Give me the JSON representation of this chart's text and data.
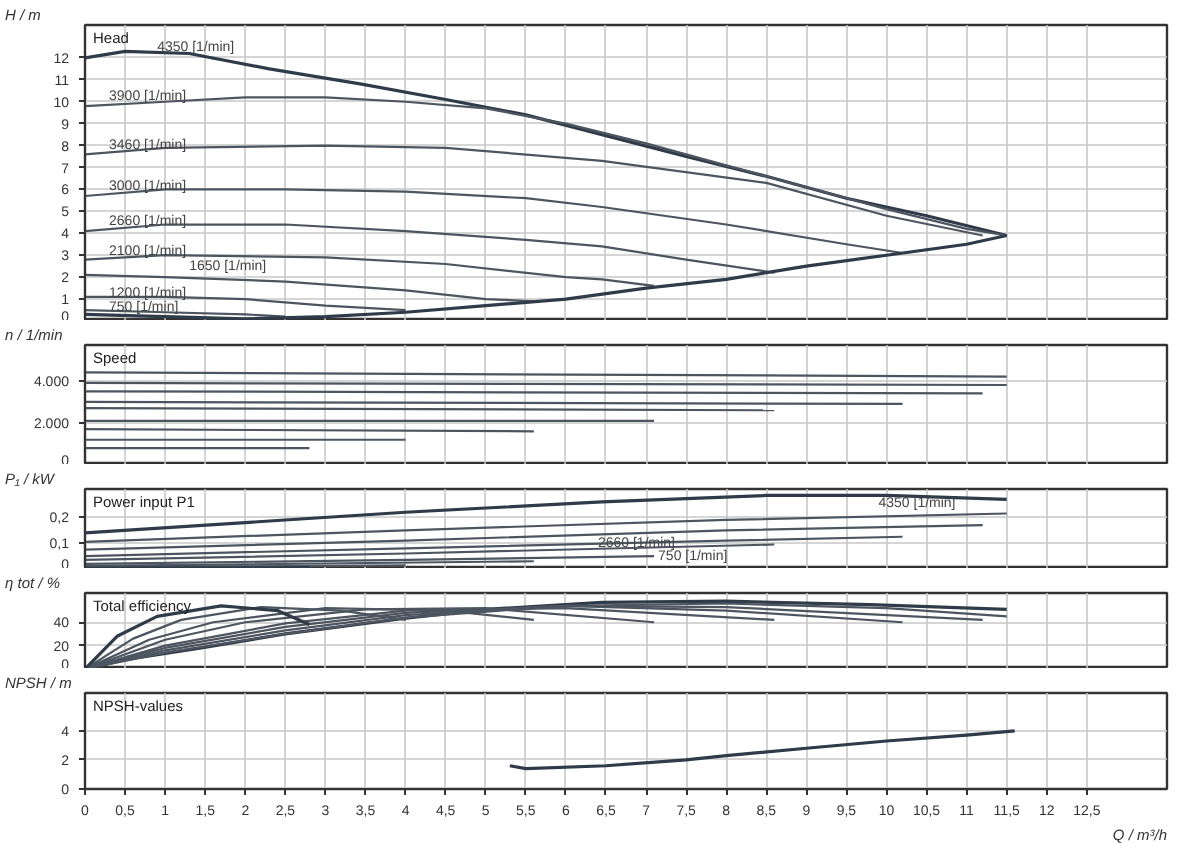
{
  "chart_data": [
    {
      "type": "line",
      "ylabel": "H / m",
      "xlim": [
        0,
        13.5
      ],
      "ylim": [
        0,
        13.5
      ],
      "tick_labels": "y",
      "grid": true,
      "line_style": "solid",
      "marker": "none",
      "xticks": [
        0,
        0.5,
        1,
        1.5,
        2,
        2.5,
        3,
        3.5,
        4,
        4.5,
        5,
        5.5,
        6,
        6.5,
        7,
        7.5,
        8,
        8.5,
        9,
        9.5,
        10,
        10.5,
        11,
        11.5,
        12,
        12.5
      ],
      "yticks": [
        0,
        1,
        2,
        3,
        4,
        5,
        6,
        7,
        8,
        9,
        10,
        11,
        12
      ],
      "annotations": [
        "Head",
        {
          "text": "4350 [1/min]",
          "x": 0.9,
          "y": 12.45
        },
        {
          "text": "3900 [1/min]",
          "x": 0.3,
          "y": 10.2
        },
        {
          "text": "3460 [1/min]",
          "x": 0.3,
          "y": 8.0
        },
        {
          "text": "3000 [1/min]",
          "x": 0.3,
          "y": 6.1
        },
        {
          "text": "2660 [1/min]",
          "x": 0.3,
          "y": 4.5
        },
        {
          "text": "2100 [1/min]",
          "x": 0.3,
          "y": 3.15
        },
        {
          "text": "1650 [1/min]",
          "x": 1.3,
          "y": 2.45
        },
        {
          "text": "1200 [1/min]",
          "x": 0.3,
          "y": 1.25
        },
        {
          "text": "750 [1/min]",
          "x": 0.3,
          "y": 0.6
        }
      ],
      "series": [
        {
          "color": "#2f3b48",
          "x": [
            0,
            0.5,
            1.3,
            2.3,
            3.45,
            4.5,
            5.5,
            6.45,
            7.5,
            8.5,
            9.5,
            10.5,
            11.5
          ],
          "values": [
            12.0,
            12.3,
            12.2,
            11.5,
            10.8,
            10.1,
            9.4,
            8.5,
            7.5,
            6.6,
            5.6,
            4.8,
            3.9
          ]
        },
        {
          "color": "#4d5560",
          "x": [
            0,
            1,
            2,
            3,
            4,
            5,
            6,
            7,
            8,
            9,
            10,
            11,
            11.5
          ],
          "values": [
            9.8,
            10.0,
            10.2,
            10.2,
            10.0,
            9.7,
            9.0,
            8.1,
            7.1,
            6.1,
            5.1,
            4.2,
            3.9
          ]
        },
        {
          "color": "#4d5560",
          "x": [
            0,
            1,
            3,
            4.5,
            6.45,
            8.5,
            10,
            11.2
          ],
          "values": [
            7.6,
            7.9,
            8.0,
            7.9,
            7.3,
            6.3,
            4.8,
            3.9
          ]
        },
        {
          "color": "#4d5560",
          "x": [
            0,
            1,
            2.5,
            4,
            5.5,
            6.45,
            8,
            9.5,
            10.2
          ],
          "values": [
            5.7,
            6.0,
            6.0,
            5.9,
            5.6,
            5.2,
            4.4,
            3.5,
            3.1
          ]
        },
        {
          "color": "#4d5560",
          "x": [
            0,
            1,
            2.5,
            4,
            5.5,
            6.45,
            7.5,
            8.6
          ],
          "values": [
            4.1,
            4.4,
            4.4,
            4.1,
            3.7,
            3.4,
            2.8,
            2.2
          ]
        },
        {
          "color": "#4d5560",
          "x": [
            0,
            1,
            3,
            4.5,
            6,
            6.45,
            7.1
          ],
          "values": [
            2.8,
            3.0,
            2.9,
            2.6,
            2.0,
            1.9,
            1.6
          ]
        },
        {
          "color": "#4d5560",
          "x": [
            0,
            1,
            2.5,
            4,
            5,
            5.6
          ],
          "values": [
            2.1,
            2.0,
            1.8,
            1.4,
            1.0,
            0.9
          ]
        },
        {
          "color": "#4d5560",
          "x": [
            0,
            1,
            2,
            3,
            4
          ],
          "values": [
            1.1,
            1.1,
            1.0,
            0.7,
            0.5
          ]
        },
        {
          "color": "#4d5560",
          "x": [
            0,
            1,
            2,
            2.5
          ],
          "values": [
            0.5,
            0.4,
            0.3,
            0.2
          ]
        },
        {
          "color": "#2f3b48",
          "x": [
            0,
            1,
            2,
            3,
            4,
            5,
            6,
            7,
            8,
            9,
            10,
            11,
            11.5
          ],
          "values": [
            0.3,
            0.2,
            0.1,
            0.2,
            0.4,
            0.7,
            1.0,
            1.5,
            1.9,
            2.5,
            3.0,
            3.5,
            3.9
          ]
        }
      ]
    },
    {
      "type": "line",
      "ylabel": "n / 1/min",
      "xlim": [
        0,
        13.5
      ],
      "ylim": [
        0,
        5700
      ],
      "tick_labels": "y",
      "grid": true,
      "line_style": "solid",
      "marker": "none",
      "xticks": [
        0,
        0.5,
        1,
        1.5,
        2,
        2.5,
        3,
        3.5,
        4,
        4.5,
        5,
        5.5,
        6,
        6.5,
        7,
        7.5,
        8,
        8.5,
        9,
        9.5,
        10,
        10.5,
        11,
        11.5,
        12,
        12.5
      ],
      "yticks": [
        0,
        {
          "value": 2000,
          "label": "2.000"
        },
        {
          "value": 4000,
          "label": "4.000"
        }
      ],
      "annotations": [
        "Speed"
      ],
      "series": [
        {
          "color": "#4d5560",
          "x": [
            0,
            11.5
          ],
          "values": [
            4400,
            4200
          ]
        },
        {
          "color": "#4d5560",
          "x": [
            0,
            11.5
          ],
          "values": [
            3900,
            3800
          ]
        },
        {
          "color": "#4d5560",
          "x": [
            0,
            11.2
          ],
          "values": [
            3500,
            3400
          ]
        },
        {
          "color": "#4d5560",
          "x": [
            0,
            10.2
          ],
          "values": [
            3000,
            2900
          ]
        },
        {
          "color": "#4d5560",
          "x": [
            0,
            8.6
          ],
          "values": [
            2700,
            2600
          ]
        },
        {
          "color": "#4d5560",
          "x": [
            0,
            7.1
          ],
          "values": [
            2100,
            2100
          ]
        },
        {
          "color": "#4d5560",
          "x": [
            0,
            5.6
          ],
          "values": [
            1700,
            1600
          ]
        },
        {
          "color": "#4d5560",
          "x": [
            0,
            4.0
          ],
          "values": [
            1200,
            1200
          ]
        },
        {
          "color": "#4d5560",
          "x": [
            0,
            2.8
          ],
          "values": [
            800,
            800
          ]
        }
      ]
    },
    {
      "type": "line",
      "ylabel": "P₁ / kW",
      "xlim": [
        0,
        13.5
      ],
      "ylim": [
        0,
        0.31
      ],
      "tick_labels": "y",
      "grid": true,
      "line_style": "solid",
      "marker": "none",
      "xticks": [
        0,
        0.5,
        1,
        1.5,
        2,
        2.5,
        3,
        3.5,
        4,
        4.5,
        5,
        5.5,
        6,
        6.5,
        7,
        7.5,
        8,
        8.5,
        9,
        9.5,
        10,
        10.5,
        11,
        11.5,
        12,
        12.5
      ],
      "yticks": [
        0,
        {
          "value": 0.1,
          "label": "0,1"
        },
        {
          "value": 0.2,
          "label": "0,2"
        }
      ],
      "annotations": [
        "Power input P1",
        {
          "text": "4350 [1/min]",
          "x": 9.9,
          "y": 0.25
        },
        {
          "text": "2660 [1/min]",
          "x": 6.4,
          "y": 0.095
        },
        {
          "text": "750 [1/min]",
          "x": 7.15,
          "y": 0.045
        }
      ],
      "series": [
        {
          "color": "#2f3b48",
          "x": [
            0,
            2,
            4,
            6.45,
            8.5,
            10,
            11.5
          ],
          "values": [
            0.14,
            0.18,
            0.22,
            0.26,
            0.285,
            0.285,
            0.27
          ]
        },
        {
          "color": "#4d5560",
          "x": [
            0,
            4,
            8,
            11.5
          ],
          "values": [
            0.105,
            0.15,
            0.19,
            0.215
          ]
        },
        {
          "color": "#4d5560",
          "x": [
            0,
            4,
            8,
            11.2
          ],
          "values": [
            0.075,
            0.11,
            0.15,
            0.17
          ]
        },
        {
          "color": "#4d5560",
          "x": [
            0,
            4,
            8,
            10.2
          ],
          "values": [
            0.05,
            0.08,
            0.11,
            0.125
          ]
        },
        {
          "color": "#4d5560",
          "x": [
            0,
            4,
            8.6
          ],
          "values": [
            0.035,
            0.06,
            0.095
          ]
        },
        {
          "color": "#4d5560",
          "x": [
            0,
            4,
            7.1
          ],
          "values": [
            0.02,
            0.035,
            0.05
          ]
        },
        {
          "color": "#4d5560",
          "x": [
            0,
            2,
            5.6
          ],
          "values": [
            0.012,
            0.018,
            0.03
          ]
        },
        {
          "color": "#4d5560",
          "x": [
            0,
            2,
            4
          ],
          "values": [
            0.006,
            0.01,
            0.014
          ]
        },
        {
          "color": "#2f3b48",
          "x": [
            0,
            1.5,
            2.8
          ],
          "values": [
            0.003,
            0.004,
            0.005
          ]
        }
      ]
    },
    {
      "type": "line",
      "ylabel": "η tot / %",
      "xlim": [
        0,
        13.5
      ],
      "ylim": [
        0,
        65
      ],
      "tick_labels": "y",
      "grid": true,
      "line_style": "solid",
      "marker": "none",
      "xticks": [
        0,
        0.5,
        1,
        1.5,
        2,
        2.5,
        3,
        3.5,
        4,
        4.5,
        5,
        5.5,
        6,
        6.5,
        7,
        7.5,
        8,
        8.5,
        9,
        9.5,
        10,
        10.5,
        11,
        11.5,
        12,
        12.5
      ],
      "yticks": [
        0,
        20,
        40
      ],
      "annotations": [
        "Total efficiency"
      ],
      "series": [
        {
          "color": "#2f3b48",
          "x": [
            0,
            0.5,
            1.45,
            2.5,
            3.95,
            5,
            6.45,
            8,
            9.8,
            11.5
          ],
          "values": [
            0,
            8,
            18,
            30,
            43,
            51,
            57,
            58,
            55,
            51
          ]
        },
        {
          "color": "#4d5560",
          "x": [
            0,
            1,
            2.5,
            4,
            6,
            8,
            10,
            11.5
          ],
          "values": [
            0,
            14,
            30,
            44,
            54,
            56,
            52,
            45
          ]
        },
        {
          "color": "#4d5560",
          "x": [
            0,
            1,
            2.5,
            4,
            6,
            8,
            11.2
          ],
          "values": [
            0,
            16,
            33,
            46,
            54,
            53,
            42
          ]
        },
        {
          "color": "#4d5560",
          "x": [
            0,
            1,
            2.5,
            4,
            6,
            8,
            10.2
          ],
          "values": [
            0,
            18,
            36,
            48,
            54,
            50,
            40
          ]
        },
        {
          "color": "#4d5560",
          "x": [
            0,
            1,
            2.5,
            4,
            6,
            8.6
          ],
          "values": [
            0,
            20,
            39,
            50,
            52,
            42
          ]
        },
        {
          "color": "#4d5560",
          "x": [
            0,
            1,
            2,
            3.5,
            5,
            7.1
          ],
          "values": [
            0,
            25,
            40,
            51,
            52,
            40
          ]
        },
        {
          "color": "#4d5560",
          "x": [
            0,
            0.8,
            1.6,
            3,
            4.5,
            5.6
          ],
          "values": [
            0,
            25,
            40,
            52,
            50,
            42
          ]
        },
        {
          "color": "#4d5560",
          "x": [
            0,
            0.6,
            1.2,
            2.2,
            3.2,
            4
          ],
          "values": [
            0,
            26,
            42,
            53,
            50,
            42
          ]
        },
        {
          "color": "#2f3b48",
          "x": [
            0,
            0.4,
            0.9,
            1.7,
            2.4,
            2.8
          ],
          "values": [
            0,
            28,
            45,
            54,
            50,
            38
          ]
        }
      ]
    },
    {
      "type": "line",
      "ylabel": "NPSH / m",
      "xlabel": "Q / m³/h",
      "xlim": [
        0,
        13.5
      ],
      "ylim": [
        0,
        6.6
      ],
      "grid": true,
      "line_style": "solid",
      "marker": "none",
      "xticks": [
        0,
        {
          "value": 0.5,
          "label": "0,5"
        },
        1,
        {
          "value": 1.5,
          "label": "1,5"
        },
        2,
        {
          "value": 2.5,
          "label": "2,5"
        },
        3,
        {
          "value": 3.5,
          "label": "3,5"
        },
        4,
        {
          "value": 4.5,
          "label": "4,5"
        },
        5,
        {
          "value": 5.5,
          "label": "5,5"
        },
        6,
        {
          "value": 6.5,
          "label": "6,5"
        },
        7,
        {
          "value": 7.5,
          "label": "7,5"
        },
        8,
        {
          "value": 8.5,
          "label": "8,5"
        },
        9,
        {
          "value": 9.5,
          "label": "9,5"
        },
        10,
        {
          "value": 10.5,
          "label": "10,5"
        },
        11,
        {
          "value": 11.5,
          "label": "11,5"
        },
        12,
        {
          "value": 12.5,
          "label": "12,5"
        }
      ],
      "yticks": [
        0,
        2,
        4
      ],
      "annotations": [
        "NPSH-values"
      ],
      "series": [
        {
          "color": "#2f3b48",
          "x": [
            5.3,
            5.5,
            6.5,
            7.5,
            8,
            9,
            10,
            11,
            11.6
          ],
          "values": [
            1.6,
            1.4,
            1.6,
            2.0,
            2.3,
            2.8,
            3.3,
            3.7,
            4.0
          ]
        }
      ]
    }
  ]
}
